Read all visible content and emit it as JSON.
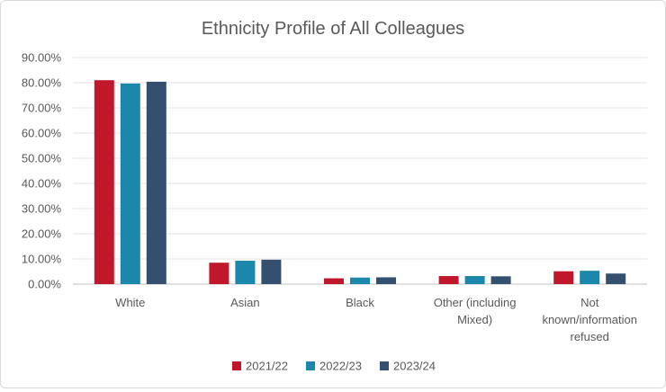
{
  "chart_data": {
    "type": "bar",
    "title": "Ethnicity Profile of All Colleagues",
    "xlabel": "",
    "ylabel": "",
    "categories": [
      [
        "White"
      ],
      [
        "Asian"
      ],
      [
        "Black"
      ],
      [
        "Other (including",
        "Mixed)"
      ],
      [
        "Not",
        "known/information",
        "refused"
      ]
    ],
    "series": [
      {
        "name": "2021/22",
        "color": "#c0172b",
        "values": [
          81.0,
          8.5,
          2.3,
          3.2,
          5.1
        ]
      },
      {
        "name": "2022/23",
        "color": "#1a87ab",
        "values": [
          79.7,
          9.3,
          2.6,
          3.2,
          5.3
        ]
      },
      {
        "name": "2023/24",
        "color": "#34506e",
        "values": [
          80.4,
          9.7,
          2.7,
          3.1,
          4.2
        ]
      }
    ],
    "ylim": [
      0,
      90
    ],
    "yticks": [
      0,
      10,
      20,
      30,
      40,
      50,
      60,
      70,
      80,
      90
    ],
    "ytick_labels": [
      "0.00%",
      "10.00%",
      "20.00%",
      "30.00%",
      "40.00%",
      "50.00%",
      "60.00%",
      "70.00%",
      "80.00%",
      "90.00%"
    ],
    "grid": true,
    "legend_position": "bottom"
  }
}
